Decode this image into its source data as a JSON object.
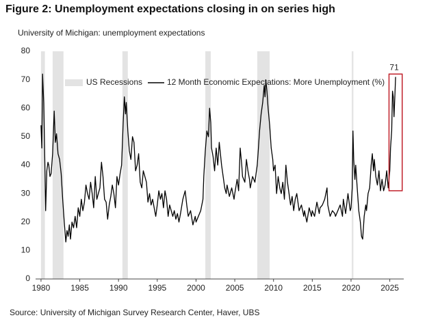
{
  "chart_data": {
    "type": "line",
    "title": "Figure 2: Unemployment expectations closing in on series high",
    "subtitle": "University of Michigan: unemployment expectations",
    "source": "Source: University of Michigan Survey Research Center, Haver, UBS",
    "xlim": [
      1979.3,
      2026.8
    ],
    "ylim": [
      0,
      80
    ],
    "xticks": [
      1980,
      1985,
      1990,
      1995,
      2000,
      2005,
      2010,
      2015,
      2020,
      2025
    ],
    "yticks": [
      0,
      10,
      20,
      30,
      40,
      50,
      60,
      70,
      80
    ],
    "grid": false,
    "legend": "top",
    "recessions": {
      "name": "US Recessions",
      "color": "#e3e3e3",
      "spans": [
        [
          1980.0,
          1980.5
        ],
        [
          1981.5,
          1982.9
        ],
        [
          1990.5,
          1991.2
        ],
        [
          2001.2,
          2001.9
        ],
        [
          2007.9,
          2009.5
        ],
        [
          2020.1,
          2020.3
        ]
      ]
    },
    "x": [
      1980.0,
      1980.1,
      1980.2,
      1980.35,
      1980.5,
      1980.6,
      1980.75,
      1980.9,
      1981.0,
      1981.15,
      1981.3,
      1981.5,
      1981.7,
      1981.85,
      1982.0,
      1982.2,
      1982.4,
      1982.6,
      1982.8,
      1983.0,
      1983.2,
      1983.35,
      1983.5,
      1983.65,
      1983.8,
      1984.0,
      1984.2,
      1984.4,
      1984.6,
      1984.8,
      1985.0,
      1985.2,
      1985.4,
      1985.6,
      1985.8,
      1986.0,
      1986.2,
      1986.4,
      1986.6,
      1986.8,
      1987.0,
      1987.2,
      1987.4,
      1987.6,
      1987.8,
      1988.0,
      1988.2,
      1988.4,
      1988.6,
      1988.8,
      1989.0,
      1989.2,
      1989.4,
      1989.6,
      1989.8,
      1990.0,
      1990.2,
      1990.4,
      1990.6,
      1990.75,
      1990.9,
      1991.0,
      1991.2,
      1991.4,
      1991.6,
      1991.8,
      1992.0,
      1992.2,
      1992.4,
      1992.6,
      1992.8,
      1993.0,
      1993.2,
      1993.4,
      1993.6,
      1993.8,
      1994.0,
      1994.2,
      1994.4,
      1994.6,
      1994.8,
      1995.0,
      1995.2,
      1995.4,
      1995.6,
      1995.8,
      1996.0,
      1996.2,
      1996.4,
      1996.6,
      1996.8,
      1997.0,
      1997.2,
      1997.4,
      1997.6,
      1997.8,
      1998.0,
      1998.3,
      1998.6,
      1998.8,
      1999.0,
      1999.3,
      1999.6,
      1999.9,
      2000.0,
      2000.3,
      2000.6,
      2000.9,
      2001.0,
      2001.2,
      2001.4,
      2001.6,
      2001.75,
      2001.9,
      2002.0,
      2002.2,
      2002.4,
      2002.6,
      2002.8,
      2003.0,
      2003.15,
      2003.3,
      2003.5,
      2003.7,
      2003.9,
      2004.0,
      2004.3,
      2004.6,
      2004.9,
      2005.0,
      2005.3,
      2005.5,
      2005.7,
      2005.9,
      2006.0,
      2006.3,
      2006.5,
      2006.7,
      2006.9,
      2007.0,
      2007.3,
      2007.6,
      2007.9,
      2008.0,
      2008.2,
      2008.4,
      2008.6,
      2008.8,
      2008.9,
      2009.0,
      2009.15,
      2009.3,
      2009.5,
      2009.7,
      2009.9,
      2010.0,
      2010.2,
      2010.4,
      2010.6,
      2010.8,
      2011.0,
      2011.2,
      2011.4,
      2011.6,
      2011.8,
      2012.0,
      2012.2,
      2012.4,
      2012.6,
      2012.8,
      2013.0,
      2013.3,
      2013.6,
      2013.9,
      2014.0,
      2014.3,
      2014.6,
      2014.9,
      2015.0,
      2015.3,
      2015.6,
      2015.9,
      2016.0,
      2016.3,
      2016.6,
      2016.9,
      2017.0,
      2017.3,
      2017.6,
      2017.9,
      2018.0,
      2018.3,
      2018.6,
      2018.9,
      2019.0,
      2019.3,
      2019.6,
      2019.9,
      2020.0,
      2020.15,
      2020.25,
      2020.35,
      2020.5,
      2020.6,
      2020.8,
      2021.0,
      2021.2,
      2021.35,
      2021.5,
      2021.7,
      2021.9,
      2022.0,
      2022.2,
      2022.4,
      2022.6,
      2022.75,
      2022.9,
      2023.0,
      2023.2,
      2023.4,
      2023.6,
      2023.8,
      2024.0,
      2024.2,
      2024.4,
      2024.6,
      2024.8,
      2025.0,
      2025.1,
      2025.25,
      2025.35,
      2025.45,
      2025.55,
      2025.65,
      2025.75
    ],
    "series": [
      {
        "name": "12 Month Economic Expectations: More Unemployment (%)",
        "color": "#000000",
        "values": [
          54,
          46,
          72,
          62,
          40,
          24,
          38,
          41,
          40,
          36,
          37,
          44,
          59,
          48,
          51,
          44,
          42,
          37,
          28,
          20,
          13,
          17,
          15,
          19,
          14,
          20,
          18,
          22,
          18,
          25,
          22,
          28,
          24,
          27,
          33,
          30,
          28,
          34,
          30,
          25,
          36,
          28,
          30,
          32,
          41,
          36,
          28,
          27,
          21,
          26,
          29,
          33,
          30,
          25,
          36,
          33,
          37,
          40,
          55,
          64,
          58,
          62,
          52,
          45,
          42,
          50,
          48,
          38,
          40,
          44,
          34,
          32,
          38,
          36,
          34,
          27,
          30,
          26,
          28,
          25,
          22,
          26,
          31,
          28,
          30,
          25,
          31,
          28,
          22,
          26,
          24,
          22,
          24,
          21,
          23,
          20,
          23,
          28,
          31,
          26,
          22,
          24,
          19,
          22,
          20,
          22,
          24,
          28,
          36,
          45,
          52,
          50,
          60,
          55,
          46,
          43,
          38,
          46,
          40,
          48,
          44,
          40,
          36,
          32,
          30,
          33,
          29,
          32,
          28,
          30,
          35,
          31,
          46,
          40,
          36,
          34,
          42,
          38,
          35,
          32,
          36,
          34,
          40,
          44,
          52,
          58,
          62,
          68,
          64,
          70,
          66,
          60,
          54,
          46,
          42,
          38,
          40,
          30,
          36,
          32,
          30,
          34,
          28,
          40,
          34,
          30,
          26,
          29,
          24,
          28,
          30,
          24,
          26,
          22,
          24,
          20,
          25,
          22,
          24,
          22,
          27,
          23,
          25,
          26,
          28,
          32,
          26,
          22,
          24,
          23,
          22,
          24,
          26,
          22,
          28,
          23,
          30,
          24,
          25,
          32,
          52,
          42,
          35,
          40,
          32,
          24,
          20,
          15,
          14,
          22,
          26,
          24,
          30,
          32,
          40,
          44,
          38,
          42,
          36,
          33,
          38,
          31,
          35,
          31,
          33,
          38,
          32,
          38,
          46,
          52,
          66,
          64,
          57,
          64,
          71
        ]
      }
    ],
    "highlight_box": {
      "xlim": [
        2024.9,
        2026.6
      ],
      "ylim": [
        31,
        72
      ],
      "color": "#c0202a"
    },
    "annotations": [
      {
        "text": "71",
        "x": 2025.75,
        "y": 71
      }
    ]
  }
}
